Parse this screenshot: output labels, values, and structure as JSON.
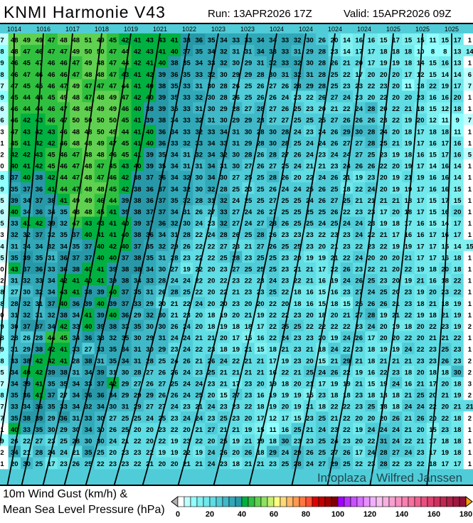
{
  "header": {
    "title": "KNMI Harmonie V43",
    "run": "Run: 13APR2026 17Z",
    "valid": "Valid: 15APR2026 09Z"
  },
  "legend": {
    "line1": "10m Wind Gust (km/h) &",
    "line2": "Mean Sea Level Pressure (hPa)",
    "ticks": [
      "0",
      "20",
      "40",
      "60",
      "80",
      "100",
      "120",
      "140",
      "160",
      "180"
    ],
    "range": [
      0,
      180
    ],
    "step": 4,
    "colors": [
      "#ffffff",
      "#c0ffff",
      "#90ffff",
      "#80f0f0",
      "#70e8ec",
      "#60dce4",
      "#50ccd8",
      "#40b8c8",
      "#30a8b8",
      "#2898a8",
      "#00b040",
      "#30c040",
      "#60d050",
      "#90e060",
      "#c8f070",
      "#ffff80",
      "#ffd878",
      "#ffb868",
      "#ff9850",
      "#ff7840",
      "#ff5030",
      "#e00000",
      "#c00000",
      "#a00000",
      "#800000",
      "#a000ff",
      "#b830ff",
      "#c850ff",
      "#d870ff",
      "#e890ff",
      "#f0b0ff",
      "#f8c0f0",
      "#f8b0e0",
      "#f8a0d0",
      "#f890c0",
      "#f880b0",
      "#f870a0",
      "#f06090",
      "#e85080",
      "#e04070",
      "#d03060",
      "#c02850",
      "#b02048",
      "#a01840",
      "#901038"
    ]
  },
  "map": {
    "watermark": "Infoplaza / Wilfred Janssen",
    "isobar_color": "#000000",
    "coast_color": "#000000",
    "isobar_labels": [
      "1014",
      "1016",
      "1017",
      "1018",
      "1019",
      "1021",
      "1022",
      "1023",
      "1023",
      "1024",
      "1024",
      "1024",
      "1024",
      "1025",
      "1025",
      "1025"
    ],
    "gust_grid": [
      [
        7,
        48,
        49,
        49,
        47,
        48,
        48,
        51,
        49,
        45,
        42,
        41,
        43,
        43,
        41,
        38,
        36,
        35,
        34,
        33,
        33,
        34,
        34,
        33,
        32,
        30,
        26,
        20,
        14,
        16,
        16,
        15,
        17,
        15,
        15,
        11,
        15,
        17,
        1
      ],
      [
        8,
        48,
        47,
        46,
        47,
        47,
        49,
        50,
        50,
        47,
        44,
        42,
        43,
        41,
        40,
        37,
        35,
        34,
        32,
        31,
        31,
        34,
        33,
        33,
        31,
        29,
        28,
        23,
        14,
        17,
        17,
        18,
        18,
        18,
        10,
        8,
        8,
        13,
        14
      ],
      [
        9,
        46,
        45,
        47,
        46,
        46,
        47,
        49,
        48,
        47,
        44,
        42,
        41,
        40,
        38,
        35,
        34,
        33,
        32,
        30,
        29,
        31,
        32,
        33,
        32,
        30,
        28,
        26,
        21,
        20,
        17,
        19,
        19,
        18,
        14,
        15,
        16,
        13,
        1
      ],
      [
        8,
        46,
        47,
        46,
        46,
        46,
        47,
        48,
        48,
        47,
        43,
        41,
        42,
        39,
        36,
        35,
        33,
        32,
        30,
        29,
        29,
        28,
        30,
        31,
        32,
        31,
        28,
        25,
        22,
        17,
        20,
        20,
        20,
        17,
        12,
        15,
        14,
        14,
        6
      ],
      [
        7,
        47,
        45,
        45,
        46,
        47,
        49,
        47,
        47,
        47,
        44,
        41,
        40,
        38,
        35,
        33,
        31,
        30,
        28,
        26,
        25,
        26,
        27,
        26,
        28,
        29,
        28,
        25,
        23,
        23,
        22,
        23,
        20,
        11,
        18,
        22,
        19,
        17,
        7
      ],
      [
        9,
        45,
        44,
        44,
        45,
        49,
        48,
        47,
        48,
        49,
        47,
        42,
        40,
        39,
        35,
        33,
        32,
        30,
        28,
        26,
        25,
        26,
        26,
        24,
        23,
        22,
        26,
        27,
        24,
        23,
        20,
        22,
        20,
        20,
        23,
        16,
        16,
        20,
        1
      ],
      [
        6,
        46,
        44,
        44,
        46,
        47,
        48,
        48,
        49,
        49,
        46,
        40,
        38,
        39,
        35,
        33,
        31,
        30,
        29,
        28,
        27,
        28,
        27,
        26,
        25,
        23,
        20,
        21,
        22,
        24,
        28,
        20,
        22,
        21,
        18,
        15,
        12,
        18,
        1
      ],
      [
        6,
        46,
        42,
        43,
        46,
        47,
        50,
        50,
        50,
        50,
        45,
        41,
        39,
        38,
        34,
        33,
        32,
        31,
        30,
        29,
        29,
        28,
        27,
        27,
        25,
        25,
        25,
        27,
        26,
        26,
        26,
        23,
        22,
        19,
        20,
        12,
        11,
        9,
        7
      ],
      [
        3,
        47,
        43,
        42,
        43,
        46,
        48,
        48,
        50,
        49,
        44,
        41,
        40,
        36,
        34,
        33,
        32,
        33,
        34,
        31,
        30,
        28,
        30,
        28,
        24,
        23,
        24,
        26,
        29,
        30,
        28,
        24,
        20,
        18,
        17,
        18,
        18,
        11,
        1
      ],
      [
        1,
        45,
        41,
        42,
        42,
        46,
        48,
        48,
        49,
        47,
        45,
        41,
        40,
        36,
        33,
        32,
        33,
        34,
        33,
        31,
        29,
        28,
        30,
        28,
        25,
        24,
        24,
        26,
        27,
        27,
        28,
        25,
        21,
        19,
        17,
        16,
        17,
        16,
        1
      ],
      [
        2,
        42,
        42,
        43,
        45,
        46,
        47,
        48,
        48,
        46,
        45,
        41,
        39,
        35,
        34,
        31,
        32,
        34,
        32,
        30,
        28,
        26,
        28,
        27,
        26,
        24,
        23,
        24,
        24,
        27,
        25,
        23,
        19,
        18,
        16,
        15,
        17,
        16,
        5
      ],
      [
        0,
        40,
        41,
        42,
        45,
        46,
        47,
        48,
        47,
        45,
        43,
        40,
        39,
        35,
        34,
        31,
        31,
        34,
        31,
        30,
        27,
        26,
        27,
        25,
        24,
        21,
        21,
        23,
        24,
        26,
        26,
        22,
        20,
        19,
        17,
        14,
        16,
        14,
        1
      ],
      [
        8,
        37,
        40,
        38,
        42,
        44,
        47,
        48,
        47,
        46,
        42,
        38,
        37,
        36,
        34,
        32,
        30,
        34,
        30,
        27,
        25,
        25,
        28,
        26,
        20,
        22,
        24,
        26,
        21,
        19,
        23,
        20,
        19,
        21,
        19,
        16,
        16,
        14,
        1
      ],
      [
        9,
        35,
        37,
        36,
        41,
        44,
        47,
        48,
        48,
        45,
        42,
        38,
        36,
        37,
        34,
        32,
        30,
        32,
        28,
        25,
        23,
        25,
        26,
        24,
        24,
        25,
        26,
        25,
        18,
        22,
        24,
        20,
        19,
        19,
        17,
        16,
        16,
        15,
        1
      ],
      [
        5,
        39,
        34,
        37,
        38,
        41,
        49,
        49,
        46,
        44,
        39,
        38,
        36,
        37,
        35,
        32,
        28,
        31,
        32,
        24,
        25,
        25,
        27,
        25,
        25,
        24,
        26,
        27,
        25,
        21,
        21,
        21,
        21,
        18,
        17,
        15,
        17,
        15,
        1
      ],
      [
        6,
        40,
        34,
        36,
        34,
        35,
        48,
        48,
        45,
        41,
        39,
        38,
        37,
        37,
        34,
        31,
        26,
        27,
        33,
        27,
        24,
        26,
        27,
        25,
        25,
        25,
        25,
        26,
        22,
        23,
        23,
        17,
        20,
        18,
        17,
        15,
        16,
        20,
        1
      ],
      [
        5,
        33,
        41,
        42,
        39,
        32,
        47,
        43,
        43,
        41,
        40,
        39,
        37,
        36,
        32,
        30,
        24,
        23,
        32,
        27,
        24,
        27,
        28,
        26,
        25,
        25,
        24,
        25,
        24,
        24,
        23,
        19,
        18,
        17,
        16,
        15,
        14,
        17,
        1
      ],
      [
        3,
        32,
        32,
        37,
        32,
        35,
        37,
        40,
        41,
        41,
        40,
        38,
        36,
        34,
        31,
        28,
        22,
        24,
        28,
        26,
        25,
        28,
        26,
        23,
        23,
        23,
        22,
        23,
        23,
        24,
        22,
        21,
        17,
        16,
        16,
        17,
        16,
        17,
        1
      ],
      [
        4,
        31,
        34,
        34,
        32,
        34,
        35,
        37,
        40,
        42,
        40,
        37,
        35,
        32,
        29,
        26,
        22,
        22,
        27,
        23,
        21,
        27,
        26,
        25,
        25,
        23,
        20,
        21,
        23,
        22,
        23,
        22,
        19,
        19,
        17,
        17,
        15,
        14,
        15
      ],
      [
        5,
        35,
        39,
        35,
        31,
        36,
        37,
        37,
        40,
        40,
        37,
        38,
        35,
        31,
        28,
        23,
        22,
        22,
        25,
        28,
        23,
        25,
        25,
        23,
        20,
        19,
        19,
        21,
        22,
        24,
        20,
        20,
        20,
        21,
        17,
        17,
        16,
        18,
        1
      ],
      [
        0,
        43,
        37,
        36,
        33,
        36,
        38,
        40,
        41,
        39,
        38,
        38,
        34,
        30,
        27,
        19,
        22,
        20,
        23,
        27,
        25,
        25,
        25,
        23,
        21,
        21,
        17,
        22,
        26,
        23,
        22,
        21,
        20,
        22,
        19,
        18,
        20,
        18,
        1
      ],
      [
        2,
        31,
        32,
        33,
        34,
        42,
        41,
        40,
        41,
        39,
        38,
        34,
        33,
        28,
        24,
        24,
        22,
        20,
        22,
        23,
        22,
        23,
        24,
        23,
        22,
        21,
        16,
        19,
        24,
        26,
        25,
        23,
        20,
        19,
        21,
        16,
        18,
        22,
        1
      ],
      [
        8,
        27,
        30,
        32,
        34,
        43,
        41,
        38,
        39,
        40,
        37,
        35,
        31,
        26,
        28,
        25,
        22,
        20,
        22,
        21,
        23,
        23,
        25,
        22,
        18,
        16,
        15,
        16,
        23,
        27,
        24,
        25,
        20,
        23,
        19,
        20,
        23,
        22,
        1
      ],
      [
        8,
        28,
        32,
        31,
        37,
        40,
        36,
        39,
        40,
        39,
        37,
        33,
        29,
        20,
        21,
        22,
        24,
        20,
        20,
        23,
        20,
        20,
        22,
        20,
        18,
        16,
        15,
        18,
        15,
        25,
        26,
        26,
        21,
        23,
        18,
        21,
        18,
        19,
        1
      ],
      [
        0,
        31,
        32,
        31,
        32,
        38,
        34,
        41,
        39,
        40,
        36,
        29,
        32,
        30,
        21,
        23,
        20,
        18,
        19,
        20,
        21,
        19,
        22,
        22,
        23,
        20,
        18,
        20,
        21,
        27,
        28,
        19,
        21,
        22,
        19,
        18,
        21,
        19,
        1
      ],
      [
        9,
        30,
        37,
        37,
        34,
        42,
        33,
        40,
        39,
        38,
        33,
        35,
        30,
        30,
        26,
        24,
        20,
        18,
        19,
        18,
        18,
        17,
        22,
        25,
        25,
        22,
        22,
        22,
        22,
        23,
        24,
        20,
        19,
        18,
        20,
        22,
        23,
        19,
        2
      ],
      [
        8,
        28,
        26,
        28,
        44,
        45,
        34,
        36,
        33,
        32,
        35,
        30,
        29,
        31,
        24,
        24,
        21,
        21,
        20,
        17,
        15,
        16,
        22,
        24,
        23,
        23,
        20,
        19,
        24,
        26,
        17,
        20,
        20,
        22,
        20,
        21,
        21,
        22,
        1
      ],
      [
        9,
        31,
        29,
        38,
        42,
        41,
        33,
        27,
        33,
        35,
        34,
        31,
        30,
        29,
        23,
        24,
        22,
        23,
        18,
        19,
        21,
        15,
        18,
        21,
        23,
        21,
        18,
        24,
        22,
        23,
        18,
        19,
        19,
        24,
        22,
        23,
        25,
        23,
        1
      ],
      [
        8,
        33,
        38,
        42,
        42,
        41,
        28,
        38,
        31,
        35,
        34,
        31,
        28,
        25,
        24,
        26,
        21,
        26,
        24,
        22,
        21,
        21,
        17,
        19,
        23,
        20,
        15,
        21,
        29,
        21,
        18,
        21,
        21,
        21,
        23,
        23,
        26,
        23,
        2
      ],
      [
        5,
        34,
        40,
        42,
        39,
        38,
        31,
        34,
        39,
        31,
        30,
        28,
        27,
        26,
        26,
        24,
        23,
        25,
        21,
        21,
        21,
        21,
        16,
        22,
        21,
        25,
        24,
        26,
        22,
        19,
        16,
        22,
        23,
        18,
        20,
        18,
        18,
        30,
        2
      ],
      [
        7,
        34,
        39,
        41,
        35,
        35,
        34,
        33,
        37,
        42,
        29,
        27,
        26,
        27,
        25,
        24,
        24,
        23,
        21,
        17,
        23,
        20,
        19,
        18,
        20,
        21,
        17,
        19,
        19,
        21,
        15,
        19,
        24,
        16,
        21,
        17,
        20,
        18,
        3
      ],
      [
        8,
        35,
        36,
        41,
        37,
        27,
        34,
        36,
        36,
        34,
        29,
        29,
        29,
        26,
        26,
        24,
        25,
        20,
        15,
        27,
        23,
        16,
        19,
        19,
        19,
        15,
        23,
        18,
        18,
        23,
        18,
        18,
        18,
        21,
        25,
        20,
        21,
        19,
        2
      ],
      [
        7,
        33,
        34,
        36,
        35,
        33,
        34,
        32,
        34,
        30,
        31,
        29,
        27,
        27,
        24,
        23,
        21,
        24,
        23,
        23,
        22,
        18,
        19,
        20,
        19,
        21,
        18,
        22,
        22,
        23,
        25,
        18,
        18,
        24,
        24,
        22,
        20,
        21,
        21
      ],
      [
        7,
        35,
        38,
        39,
        29,
        36,
        31,
        33,
        30,
        27,
        25,
        25,
        24,
        25,
        23,
        24,
        24,
        23,
        25,
        23,
        20,
        17,
        12,
        17,
        15,
        23,
        25,
        21,
        22,
        20,
        20,
        20,
        26,
        21,
        26,
        20,
        22,
        18,
        2
      ],
      [
        1,
        40,
        33,
        35,
        30,
        29,
        30,
        34,
        30,
        26,
        25,
        20,
        20,
        23,
        22,
        20,
        21,
        27,
        21,
        21,
        19,
        15,
        11,
        16,
        25,
        21,
        24,
        23,
        22,
        19,
        24,
        24,
        24,
        21,
        20,
        15,
        23,
        18,
        1
      ],
      [
        9,
        26,
        22,
        27,
        23,
        25,
        28,
        30,
        30,
        24,
        21,
        22,
        20,
        22,
        19,
        23,
        22,
        20,
        25,
        19,
        21,
        19,
        18,
        30,
        23,
        23,
        25,
        24,
        23,
        20,
        22,
        31,
        24,
        22,
        21,
        17,
        18,
        18,
        1
      ],
      [
        2,
        34,
        21,
        28,
        24,
        24,
        21,
        35,
        25,
        20,
        23,
        23,
        22,
        19,
        19,
        22,
        19,
        24,
        26,
        20,
        26,
        18,
        29,
        24,
        29,
        26,
        25,
        27,
        26,
        17,
        24,
        28,
        27,
        24,
        23,
        17,
        19,
        18,
        1
      ],
      [
        1,
        20,
        30,
        25,
        17,
        23,
        26,
        25,
        22,
        23,
        23,
        22,
        21,
        20,
        20,
        21,
        21,
        24,
        23,
        18,
        21,
        21,
        23,
        25,
        28,
        24,
        27,
        29,
        25,
        22,
        23,
        28,
        22,
        23,
        22,
        18,
        17,
        17,
        1
      ]
    ]
  }
}
